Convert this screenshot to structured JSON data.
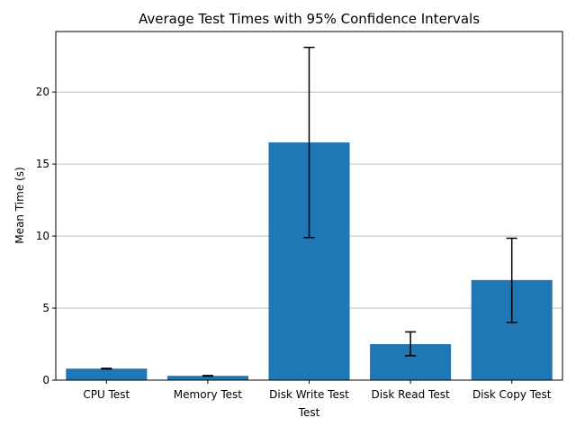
{
  "chart_data": {
    "type": "bar",
    "title": "Average Test Times with 95% Confidence Intervals",
    "xlabel": "Test",
    "ylabel": "Mean Time (s)",
    "categories": [
      "CPU Test",
      "Memory Test",
      "Disk Write Test",
      "Disk Read Test",
      "Disk Copy Test"
    ],
    "values": [
      0.8,
      0.3,
      16.5,
      2.5,
      6.95
    ],
    "error_low": [
      0.78,
      0.28,
      9.9,
      1.7,
      4.0
    ],
    "error_high": [
      0.82,
      0.32,
      23.1,
      3.35,
      9.85
    ],
    "yticks": [
      0,
      5,
      10,
      15,
      20
    ],
    "ylim": [
      0,
      24.2
    ],
    "grid": "y-axis horizontal lines",
    "bar_color": "#1f77b4",
    "error_color": "#000000",
    "grid_color": "#b0b0b0"
  }
}
